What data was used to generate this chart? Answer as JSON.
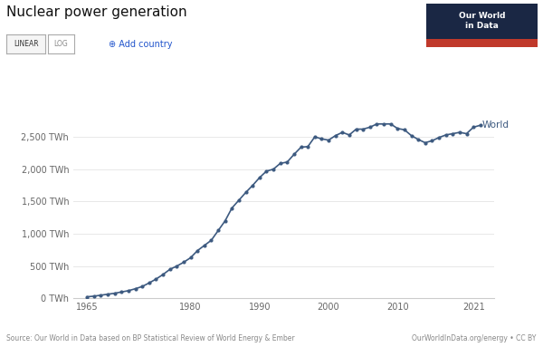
{
  "title": "Nuclear power generation",
  "source_left": "Source: Our World in Data based on BP Statistical Review of World Energy & Ember",
  "source_right": "OurWorldInData.org/energy • CC BY",
  "line_color": "#3d5a80",
  "bg_color": "#ffffff",
  "grid_color": "#e8e8e8",
  "years": [
    1965,
    1966,
    1967,
    1968,
    1969,
    1970,
    1971,
    1972,
    1973,
    1974,
    1975,
    1976,
    1977,
    1978,
    1979,
    1980,
    1981,
    1982,
    1983,
    1984,
    1985,
    1986,
    1987,
    1988,
    1989,
    1990,
    1991,
    1992,
    1993,
    1994,
    1995,
    1996,
    1997,
    1998,
    1999,
    2000,
    2001,
    2002,
    2003,
    2004,
    2005,
    2006,
    2007,
    2008,
    2009,
    2010,
    2011,
    2012,
    2013,
    2014,
    2015,
    2016,
    2017,
    2018,
    2019,
    2020,
    2021,
    2022
  ],
  "values": [
    25,
    35,
    50,
    65,
    80,
    100,
    120,
    150,
    185,
    240,
    300,
    370,
    450,
    500,
    560,
    630,
    740,
    820,
    900,
    1050,
    1200,
    1400,
    1520,
    1640,
    1750,
    1870,
    1970,
    2000,
    2090,
    2110,
    2230,
    2340,
    2350,
    2500,
    2470,
    2450,
    2520,
    2570,
    2530,
    2620,
    2620,
    2650,
    2700,
    2700,
    2700,
    2630,
    2610,
    2520,
    2460,
    2410,
    2440,
    2490,
    2530,
    2550,
    2570,
    2550,
    2650,
    2680
  ],
  "yticks": [
    0,
    500,
    1000,
    1500,
    2000,
    2500
  ],
  "ytick_labels": [
    "0 TWh",
    "500 TWh",
    "1,000 TWh",
    "1,500 TWh",
    "2,000 TWh",
    "2,500 TWh"
  ],
  "xticks": [
    1965,
    1980,
    1990,
    2000,
    2010,
    2021
  ],
  "ylim": [
    0,
    2900
  ],
  "xlim": [
    1963,
    2024
  ],
  "title_fontsize": 11,
  "tick_fontsize": 7,
  "annotation_fontsize": 7.5,
  "source_fontsize": 5.5,
  "logo_bg": "#1a2744",
  "logo_red": "#c0392b",
  "btn_border": "#aaaaaa",
  "btn_bg": "#f5f5f5"
}
